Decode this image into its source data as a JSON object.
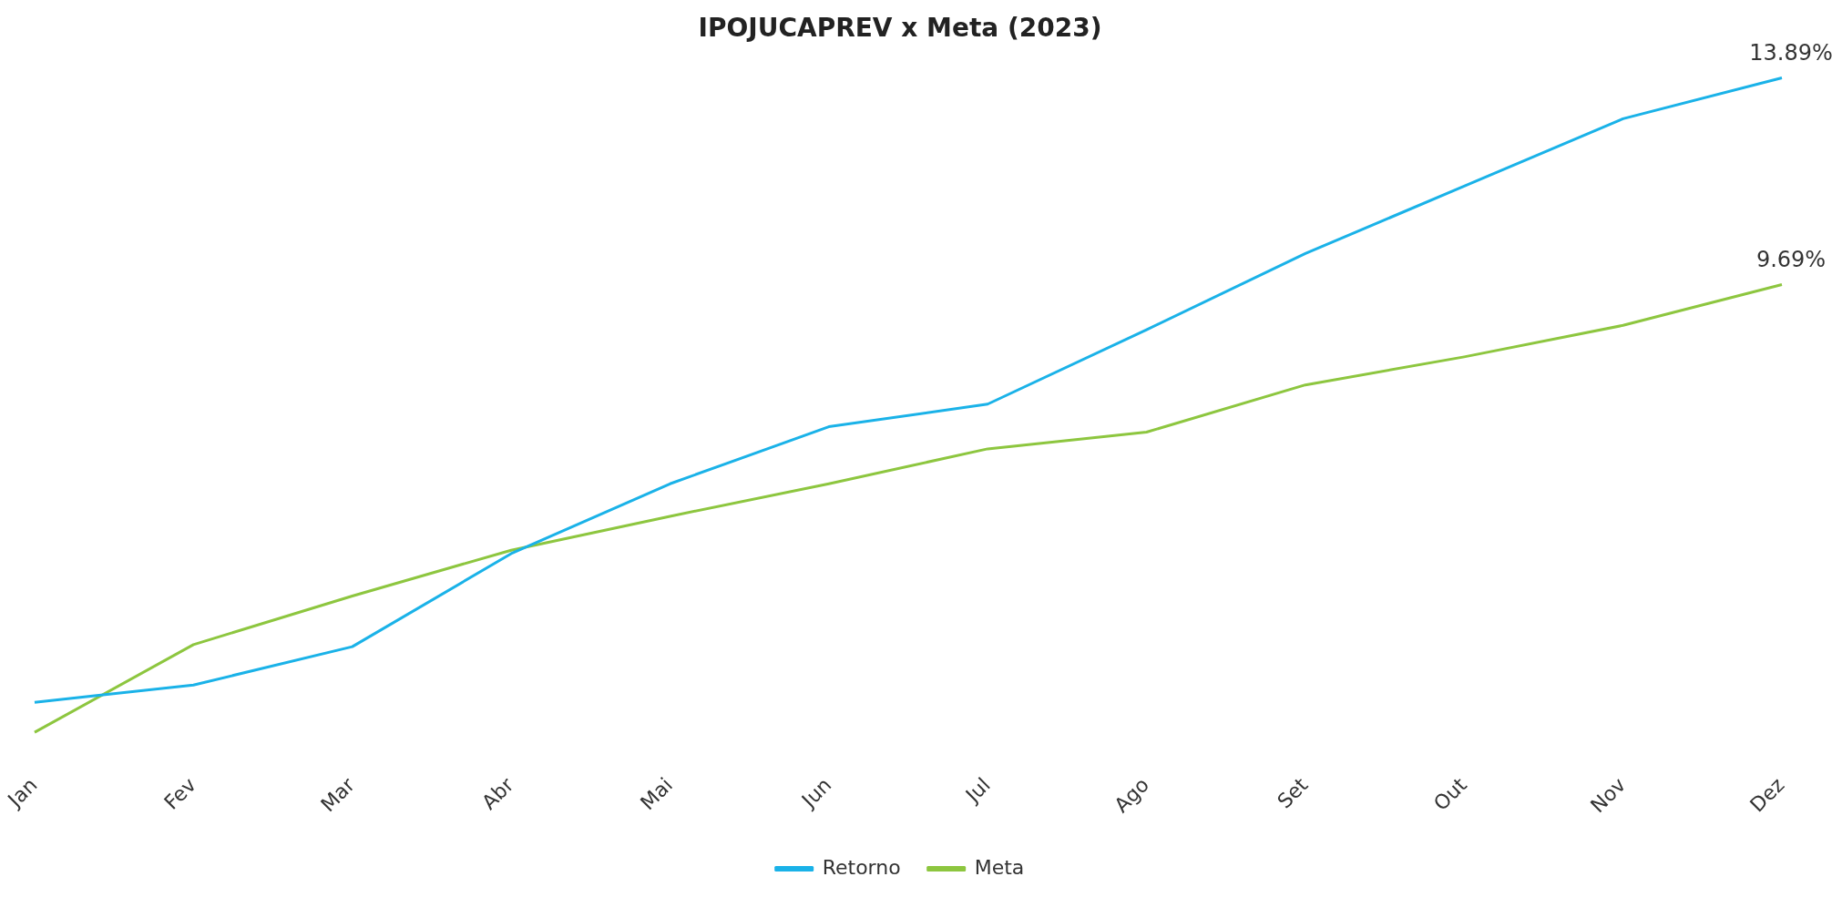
{
  "chart_data": {
    "type": "line",
    "title": "IPOJUCAPREV x Meta (2023)",
    "categories": [
      "Jan",
      "Fev",
      "Mar",
      "Abr",
      "Mai",
      "Jun",
      "Jul",
      "Ago",
      "Set",
      "Out",
      "Nov",
      "Dez"
    ],
    "series": [
      {
        "name": "Retorno",
        "color": "#1ab2e8",
        "values": [
          1.2,
          1.55,
          2.33,
          4.22,
          5.64,
          6.8,
          7.26,
          8.77,
          10.32,
          11.69,
          13.06,
          13.89
        ],
        "value_labels": [
          null,
          null,
          null,
          null,
          null,
          null,
          null,
          null,
          null,
          null,
          null,
          "13.89%"
        ]
      },
      {
        "name": "Meta",
        "color": "#8dc63f",
        "values": [
          0.59,
          2.37,
          3.36,
          4.29,
          4.98,
          5.64,
          6.35,
          6.69,
          7.65,
          8.22,
          8.86,
          9.69
        ],
        "value_labels": [
          null,
          null,
          null,
          null,
          null,
          null,
          null,
          null,
          null,
          null,
          null,
          "9.69%"
        ]
      }
    ],
    "legend": "bottom",
    "grid": false,
    "marker": "none",
    "tick_labels": "x",
    "line_style": "solid"
  }
}
